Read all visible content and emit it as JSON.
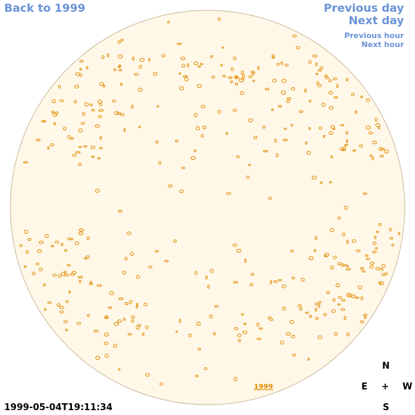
{
  "links": {
    "back": "Back to 1999",
    "previous_day": "Previous day",
    "next_day": "Next day",
    "previous_hour": "Previous hour",
    "next_hour": "Next hour"
  },
  "timestamp": "1999-05-04T19:11:34",
  "compass": {
    "north": "N",
    "east": "E",
    "center": "+",
    "west": "W",
    "south": "S"
  },
  "year_label": "1999"
}
